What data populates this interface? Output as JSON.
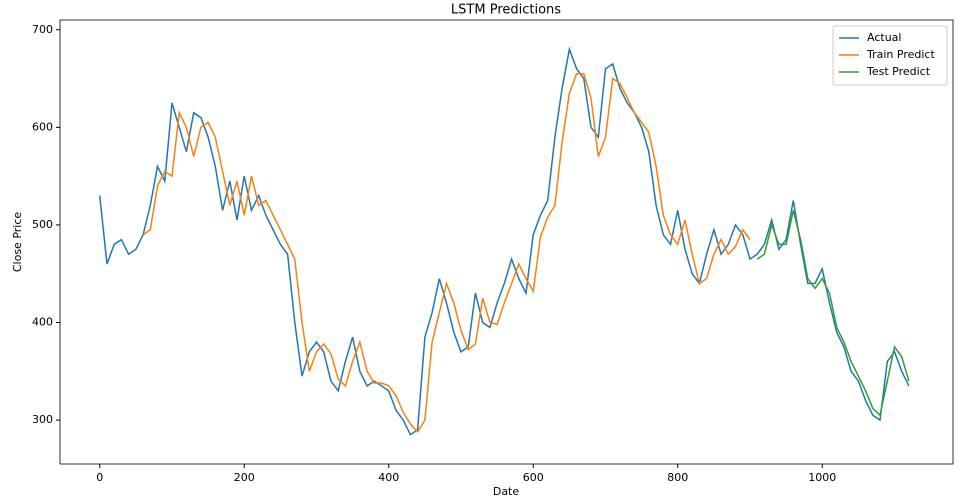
{
  "chart_data": {
    "type": "line",
    "title": "LSTM Predictions",
    "x_label": "Date",
    "y_label": "Close Price",
    "x": [
      0,
      10,
      20,
      30,
      40,
      50,
      60,
      70,
      80,
      90,
      100,
      110,
      120,
      130,
      140,
      150,
      160,
      170,
      180,
      190,
      200,
      210,
      220,
      230,
      240,
      250,
      260,
      270,
      280,
      290,
      300,
      310,
      320,
      330,
      340,
      350,
      360,
      370,
      380,
      390,
      400,
      410,
      420,
      430,
      440,
      450,
      460,
      470,
      480,
      490,
      500,
      510,
      520,
      530,
      540,
      550,
      560,
      570,
      580,
      590,
      600,
      610,
      620,
      630,
      640,
      650,
      660,
      670,
      680,
      690,
      700,
      710,
      720,
      730,
      740,
      750,
      760,
      770,
      780,
      790,
      800,
      810,
      820,
      830,
      840,
      850,
      860,
      870,
      880,
      890,
      900,
      910,
      920,
      930,
      940,
      950,
      960,
      970,
      980,
      990,
      1000,
      1010,
      1020,
      1030,
      1040,
      1050,
      1060,
      1070,
      1080,
      1090,
      1100,
      1110,
      1120
    ],
    "series": [
      {
        "name": "Actual",
        "color": "#1f77b4",
        "values": [
          530,
          460,
          480,
          485,
          470,
          475,
          490,
          520,
          560,
          545,
          625,
          600,
          575,
          615,
          610,
          590,
          560,
          515,
          545,
          505,
          550,
          515,
          530,
          510,
          495,
          480,
          470,
          400,
          345,
          370,
          380,
          370,
          340,
          330,
          360,
          385,
          350,
          335,
          340,
          335,
          330,
          310,
          300,
          285,
          290,
          385,
          410,
          445,
          420,
          390,
          370,
          375,
          430,
          400,
          395,
          420,
          440,
          465,
          445,
          430,
          490,
          510,
          525,
          590,
          640,
          680,
          660,
          650,
          600,
          590,
          660,
          665,
          640,
          625,
          615,
          600,
          575,
          520,
          490,
          480,
          515,
          475,
          450,
          440,
          470,
          495,
          470,
          480,
          500,
          490,
          465,
          470,
          480,
          505,
          475,
          485,
          525,
          480,
          440,
          440,
          455,
          420,
          390,
          375,
          350,
          340,
          320,
          305,
          300,
          360,
          370,
          350,
          335
        ]
      },
      {
        "name": "Train Predict",
        "color": "#ff7f0e",
        "values": [
          null,
          null,
          null,
          null,
          null,
          null,
          490,
          495,
          540,
          555,
          550,
          615,
          600,
          570,
          600,
          605,
          590,
          555,
          520,
          545,
          510,
          550,
          520,
          525,
          510,
          495,
          480,
          465,
          400,
          350,
          370,
          378,
          368,
          342,
          335,
          360,
          380,
          350,
          338,
          338,
          335,
          325,
          308,
          296,
          288,
          300,
          380,
          410,
          440,
          420,
          392,
          372,
          378,
          425,
          400,
          398,
          420,
          440,
          460,
          445,
          432,
          488,
          508,
          520,
          585,
          635,
          655,
          655,
          630,
          570,
          590,
          650,
          645,
          630,
          615,
          605,
          595,
          560,
          510,
          490,
          480,
          505,
          470,
          440,
          445,
          470,
          485,
          470,
          478,
          495,
          485,
          null,
          null,
          null,
          null,
          null,
          null,
          null,
          null,
          null,
          null,
          null,
          null,
          null,
          null,
          null,
          null,
          null,
          null,
          null,
          null,
          null,
          null
        ]
      },
      {
        "name": "Test Predict",
        "color": "#2ca02c",
        "values": [
          null,
          null,
          null,
          null,
          null,
          null,
          null,
          null,
          null,
          null,
          null,
          null,
          null,
          null,
          null,
          null,
          null,
          null,
          null,
          null,
          null,
          null,
          null,
          null,
          null,
          null,
          null,
          null,
          null,
          null,
          null,
          null,
          null,
          null,
          null,
          null,
          null,
          null,
          null,
          null,
          null,
          null,
          null,
          null,
          null,
          null,
          null,
          null,
          null,
          null,
          null,
          null,
          null,
          null,
          null,
          null,
          null,
          null,
          null,
          null,
          null,
          null,
          null,
          null,
          null,
          null,
          null,
          null,
          null,
          null,
          null,
          null,
          null,
          null,
          null,
          null,
          null,
          null,
          null,
          null,
          null,
          null,
          null,
          null,
          null,
          null,
          null,
          null,
          null,
          null,
          null,
          465,
          470,
          500,
          480,
          480,
          515,
          485,
          445,
          435,
          445,
          430,
          395,
          380,
          360,
          345,
          330,
          312,
          305,
          340,
          375,
          365,
          340
        ]
      }
    ],
    "xlim": [
      -55,
      1181
    ],
    "xticks": [
      0,
      200,
      400,
      600,
      800,
      1000
    ],
    "ylim": [
      255,
      710
    ],
    "yticks": [
      300,
      400,
      500,
      600,
      700
    ],
    "legend": "upper right",
    "grid": false
  }
}
